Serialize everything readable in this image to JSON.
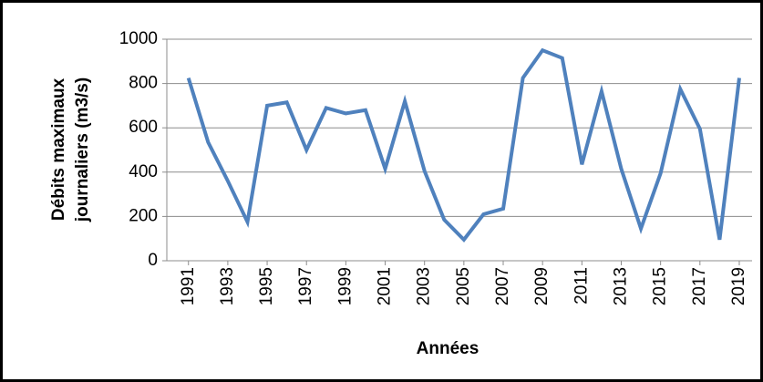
{
  "chart_data": {
    "type": "line",
    "x_label": "Années",
    "y_label": [
      "Débits maximaux",
      "journaliers  (m3/s)"
    ],
    "x": [
      1991,
      1992,
      1993,
      1994,
      1995,
      1996,
      1997,
      1998,
      1999,
      2000,
      2001,
      2002,
      2003,
      2004,
      2005,
      2006,
      2007,
      2008,
      2009,
      2010,
      2011,
      2012,
      2013,
      2014,
      2015,
      2016,
      2017,
      2018,
      2019
    ],
    "series": [
      {
        "name": null,
        "color": "#4f81bd",
        "values": [
          825,
          535,
          360,
          175,
          700,
          715,
          500,
          690,
          665,
          680,
          415,
          720,
          405,
          185,
          95,
          210,
          235,
          825,
          950,
          915,
          435,
          765,
          415,
          145,
          395,
          775,
          595,
          95,
          825
        ]
      }
    ],
    "xlim": [
      1989.9,
      2019.65
    ],
    "xticks": [
      1991,
      1993,
      1995,
      1997,
      1999,
      2001,
      2003,
      2005,
      2007,
      2009,
      2011,
      2013,
      2015,
      2017,
      2019
    ],
    "ylim": [
      0,
      1000
    ],
    "yticks": [
      0,
      200,
      400,
      600,
      800,
      1000
    ],
    "grid": true
  }
}
